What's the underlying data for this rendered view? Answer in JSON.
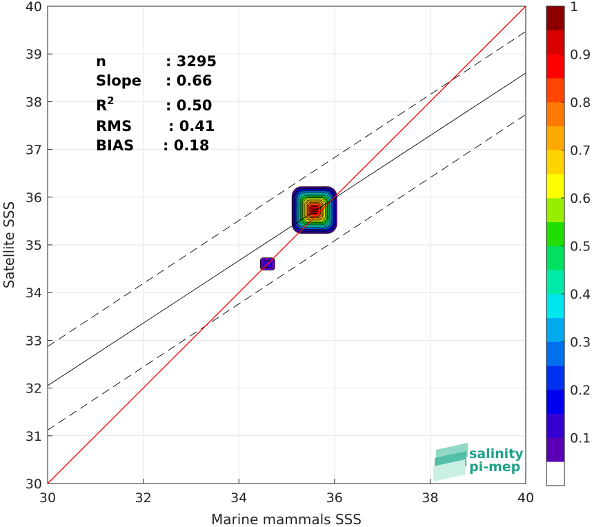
{
  "chart_data": {
    "type": "scatter",
    "title": "",
    "xlabel": "Marine mammals SSS",
    "ylabel": "Satellite SSS",
    "xlim": [
      30,
      40
    ],
    "ylim": [
      30,
      40
    ],
    "xticks": [
      30,
      32,
      34,
      36,
      38,
      40
    ],
    "yticks": [
      30,
      31,
      32,
      33,
      34,
      35,
      36,
      37,
      38,
      39,
      40
    ],
    "grid": true,
    "stats": [
      {
        "label": "n",
        "value": ": 3295"
      },
      {
        "label": "Slope",
        "value": ": 0.66"
      },
      {
        "label": "R",
        "sup": "2",
        "value": ": 0.50"
      },
      {
        "label": "RMS",
        "value": ": 0.41"
      },
      {
        "label": "BIAS",
        "value": ": 0.18"
      }
    ],
    "lines": {
      "identity": {
        "x": [
          30,
          40
        ],
        "y": [
          30,
          40
        ],
        "color": "#ff0000"
      },
      "fit": {
        "x": [
          30,
          40
        ],
        "y": [
          32.05,
          38.6
        ],
        "color": "#000000"
      },
      "fit_upper": {
        "x": [
          30,
          40
        ],
        "y": [
          32.87,
          39.47
        ],
        "color": "#000000",
        "dash": true
      },
      "fit_lower": {
        "x": [
          30,
          40
        ],
        "y": [
          31.12,
          37.73
        ],
        "color": "#000000",
        "dash": true
      }
    },
    "density_clusters": [
      {
        "center": [
          35.58,
          35.73
        ],
        "radius": [
          0.47,
          0.49
        ],
        "peak": 1.0
      },
      {
        "center": [
          34.6,
          34.6
        ],
        "radius": [
          0.15,
          0.13
        ],
        "peak": 0.1
      }
    ],
    "colorbar": {
      "min": 0,
      "max": 1,
      "ticks": [
        "0.1",
        "0.2",
        "0.3",
        "0.4",
        "0.5",
        "0.6",
        "0.7",
        "0.8",
        "0.9",
        "1"
      ],
      "colors": [
        "#ffffff",
        "#5b00b4",
        "#3600d2",
        "#0000ee",
        "#0030f0",
        "#0070ef",
        "#00aaee",
        "#00e6ee",
        "#00eaaa",
        "#00e060",
        "#22dd00",
        "#99ee00",
        "#ffff00",
        "#ffd400",
        "#ffaa00",
        "#ff7a00",
        "#ff4400",
        "#ff0000",
        "#d80000",
        "#8c0000"
      ]
    },
    "logo": {
      "line1": "salinity",
      "line2": "pi-mep",
      "color": "#1fa38a"
    }
  }
}
